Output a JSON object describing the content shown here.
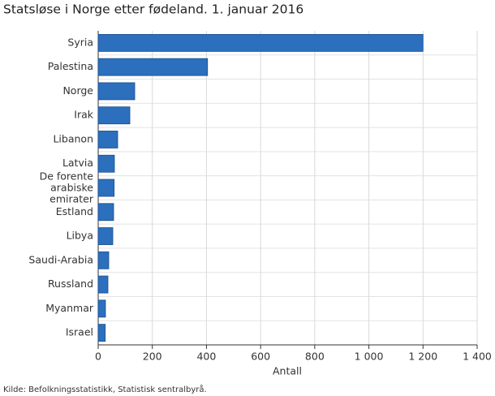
{
  "chart_data": {
    "type": "bar",
    "orientation": "horizontal",
    "title": "Statsløse i Norge etter fødeland. 1. januar 2016",
    "categories": [
      "Syria",
      "Palestina",
      "Norge",
      "Irak",
      "Libanon",
      "Latvia",
      "De forente arabiske emirater",
      "Estland",
      "Libya",
      "Saudi-Arabia",
      "Russland",
      "Myanmar",
      "Israel"
    ],
    "values": [
      1200,
      404,
      135,
      117,
      72,
      60,
      59,
      57,
      54,
      39,
      36,
      27,
      26
    ],
    "color": "#2b6fbd",
    "xlabel": "Antall",
    "xlim": [
      0,
      1400
    ],
    "xticks": [
      0,
      200,
      400,
      600,
      800,
      {
        "value": 1000,
        "label": "1 000"
      },
      {
        "value": 1200,
        "label": "1 200"
      },
      {
        "value": 1400,
        "label": "1 400"
      }
    ],
    "grid": true,
    "source": "Kilde: Befolkningsstatistikk, Statistisk sentralbyrå."
  }
}
